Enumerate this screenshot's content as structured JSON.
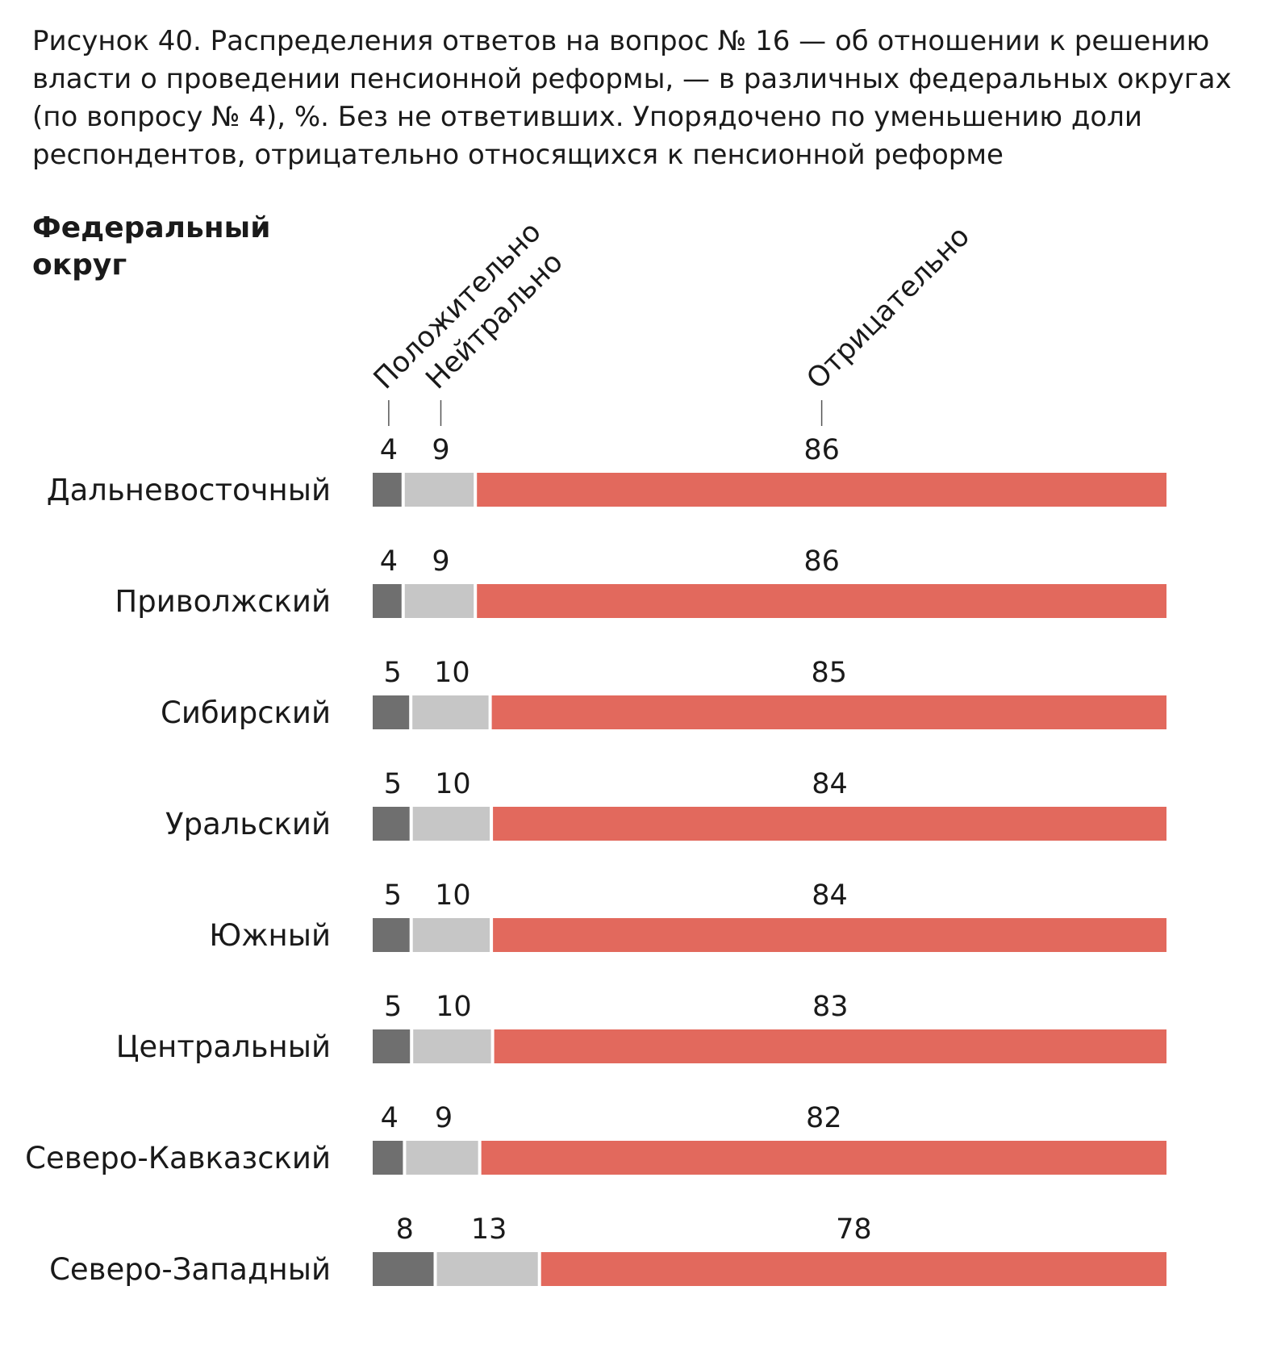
{
  "caption": "Рисунок 40. Распределения ответов на вопрос № 16 — об отношении к решению власти о проведении пенсионной реформы, — в различных федеральных округах (по вопросу № 4), %. Без не ответивших. Упорядочено по уменьшению доли респондентов, отрицательно относящихся к пенсионной реформе",
  "chart_data": {
    "type": "bar",
    "orientation": "horizontal",
    "stacked": true,
    "row_header": "Федеральный округ",
    "categories": [
      "Дальневосточный",
      "Приволжский",
      "Сибирский",
      "Уральский",
      "Южный",
      "Центральный",
      "Северо-Кавказский",
      "Северо-Западный"
    ],
    "series": [
      {
        "name": "Положительно",
        "color": "#6f6f6f",
        "values": [
          4,
          4,
          5,
          5,
          5,
          5,
          4,
          8
        ]
      },
      {
        "name": "Нейтрально",
        "color": "#c6c6c6",
        "values": [
          9,
          9,
          10,
          10,
          10,
          10,
          9,
          13
        ]
      },
      {
        "name": "Отрицательно",
        "color": "#e2695d",
        "values": [
          86,
          86,
          85,
          84,
          84,
          83,
          82,
          78
        ]
      }
    ],
    "legend": "rotated column headers above first row",
    "grid": false
  }
}
